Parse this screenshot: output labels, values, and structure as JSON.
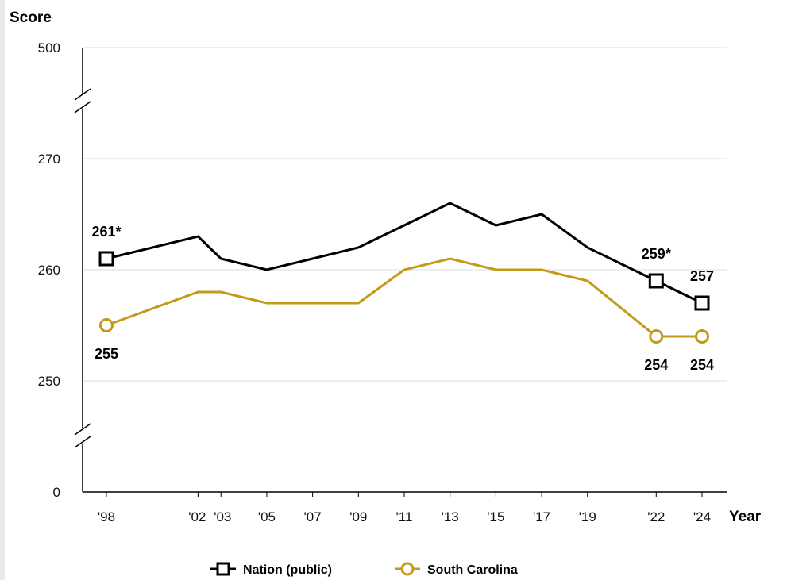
{
  "chart_data": {
    "type": "line",
    "ylabel": "Score",
    "xlabel": "Year",
    "y_ticks": [
      "500",
      "270",
      "260",
      "250",
      "0"
    ],
    "x_ticks": [
      "'98",
      "'02",
      "'03",
      "'05",
      "'07",
      "'09",
      "'11",
      "'13",
      "'15",
      "'17",
      "'19",
      "'22",
      "'24"
    ],
    "x_years": [
      1998,
      2002,
      2003,
      2005,
      2007,
      2009,
      2011,
      2013,
      2015,
      2017,
      2019,
      2022,
      2024
    ],
    "ylim": [
      0,
      500
    ],
    "axis_breaks": [
      "between 270 and 500",
      "between 0 and 250"
    ],
    "grid": true,
    "legend_position": "bottom",
    "series": [
      {
        "name": "Nation (public)",
        "marker": "square",
        "color": "#000000",
        "x": [
          1998,
          2002,
          2003,
          2005,
          2007,
          2009,
          2011,
          2013,
          2015,
          2017,
          2019,
          2022,
          2024
        ],
        "values": [
          261,
          263,
          261,
          260,
          261,
          262,
          264,
          266,
          264,
          265,
          262,
          259,
          257
        ],
        "marked_points": [
          1998,
          2022,
          2024
        ]
      },
      {
        "name": "South Carolina",
        "marker": "circle",
        "color": "#c49a1a",
        "x": [
          1998,
          2002,
          2003,
          2005,
          2007,
          2009,
          2011,
          2013,
          2015,
          2017,
          2019,
          2022,
          2024
        ],
        "values": [
          255,
          258,
          258,
          257,
          257,
          257,
          260,
          261,
          260,
          260,
          259,
          254,
          254
        ],
        "marked_points": [
          1998,
          2022,
          2024
        ]
      }
    ],
    "data_labels": [
      {
        "series": 0,
        "x": 1998,
        "text": "261*",
        "position": "above"
      },
      {
        "series": 0,
        "x": 2022,
        "text": "259*",
        "position": "above"
      },
      {
        "series": 0,
        "x": 2024,
        "text": "257",
        "position": "above"
      },
      {
        "series": 1,
        "x": 1998,
        "text": "255",
        "position": "below"
      },
      {
        "series": 1,
        "x": 2022,
        "text": "254",
        "position": "below"
      },
      {
        "series": 1,
        "x": 2024,
        "text": "254",
        "position": "below"
      }
    ]
  }
}
